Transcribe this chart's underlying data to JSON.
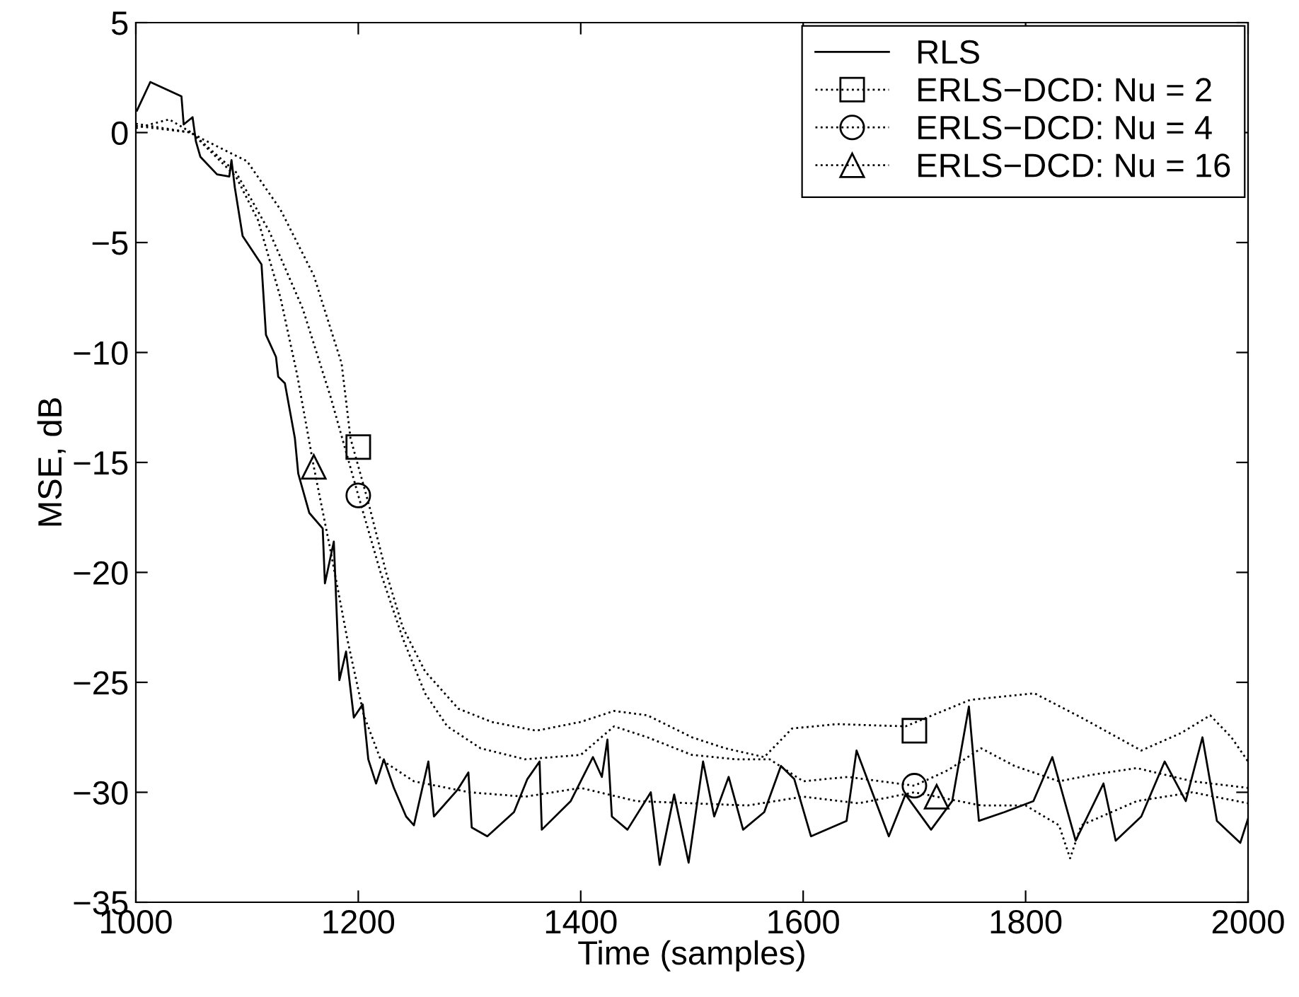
{
  "chart_data": {
    "type": "line",
    "xlabel": "Time (samples)",
    "ylabel": "MSE, dB",
    "xlim": [
      1000,
      2000
    ],
    "xticks": [
      1000,
      1200,
      1400,
      1600,
      1800,
      2000
    ],
    "ylim": [
      -35,
      5
    ],
    "yticks": [
      -35,
      -30,
      -25,
      -20,
      -15,
      -10,
      -5,
      0,
      5
    ],
    "grid": false,
    "legend": "top right",
    "series": [
      {
        "name": "RLS",
        "color": "#000000",
        "line_style": "solid",
        "x": [
          1001,
          1013,
          1041,
          1043,
          1051,
          1054,
          1058,
          1073,
          1084,
          1086,
          1089,
          1096,
          1113,
          1117,
          1126,
          1128,
          1134,
          1143,
          1146,
          1156,
          1168,
          1170,
          1178,
          1183,
          1189,
          1196,
          1204,
          1209,
          1216,
          1223,
          1232,
          1243,
          1250,
          1263,
          1268,
          1289,
          1299,
          1302,
          1316,
          1340,
          1352,
          1363,
          1365,
          1391,
          1411,
          1419,
          1424,
          1428,
          1442,
          1463,
          1471,
          1484,
          1497,
          1510,
          1520,
          1533,
          1546,
          1565,
          1580,
          1592,
          1607,
          1639,
          1648,
          1677,
          1692,
          1715,
          1734,
          1749,
          1758,
          1781,
          1807,
          1824,
          1845,
          1870,
          1881,
          1904,
          1925,
          1944,
          1959,
          1972,
          1993,
          2000
        ],
        "values": [
          1.0,
          2.3,
          1.65,
          0.37,
          0.7,
          -0.4,
          -1.1,
          -1.9,
          -2.0,
          -1.25,
          -2.5,
          -4.7,
          -6.0,
          -9.2,
          -10.2,
          -11.1,
          -11.4,
          -13.9,
          -15.5,
          -17.3,
          -18.0,
          -20.5,
          -18.6,
          -24.9,
          -23.6,
          -26.6,
          -26.0,
          -28.5,
          -29.6,
          -28.5,
          -29.8,
          -31.1,
          -31.5,
          -28.6,
          -31.1,
          -29.9,
          -29.1,
          -31.6,
          -32.0,
          -30.9,
          -29.4,
          -28.6,
          -31.7,
          -30.4,
          -28.4,
          -29.3,
          -27.6,
          -31.1,
          -31.7,
          -30.0,
          -33.3,
          -30.1,
          -33.2,
          -28.6,
          -31.1,
          -29.3,
          -31.7,
          -30.9,
          -28.8,
          -29.4,
          -32.0,
          -31.3,
          -28.1,
          -32.0,
          -30.1,
          -31.7,
          -30.4,
          -26.1,
          -31.3,
          -30.9,
          -30.4,
          -28.4,
          -32.2,
          -29.6,
          -32.2,
          -31.1,
          -28.6,
          -30.4,
          -27.5,
          -31.3,
          -32.3,
          -31.2
        ]
      },
      {
        "name": "ERLS−DCD: Nu = 2",
        "color": "#000000",
        "line_style": "dotted",
        "x": [
          1000,
          1030,
          1060,
          1100,
          1130,
          1160,
          1185,
          1193,
          1210,
          1225,
          1240,
          1260,
          1290,
          1320,
          1360,
          1400,
          1430,
          1460,
          1500,
          1530,
          1565,
          1590,
          1630,
          1692,
          1750,
          1808,
          1850,
          1904,
          1940,
          1966,
          1985,
          2000
        ],
        "values": [
          0.2,
          0.6,
          -0.3,
          -1.3,
          -3.5,
          -6.5,
          -10.5,
          -13.9,
          -17,
          -20,
          -22.5,
          -24.5,
          -26.2,
          -26.8,
          -27.2,
          -26.8,
          -26.3,
          -26.5,
          -27.5,
          -28,
          -28.4,
          -27.1,
          -26.9,
          -27.0,
          -25.8,
          -25.5,
          -26.6,
          -28.1,
          -27.3,
          -26.5,
          -27.5,
          -28.6
        ]
      },
      {
        "color": "#000000",
        "type": "scatter",
        "marker": "square",
        "x": [
          1200,
          1700
        ],
        "values": [
          -14.3,
          -27.2
        ]
      },
      {
        "name": "ERLS−DCD: Nu = 4",
        "color": "#000000",
        "line_style": "dotted",
        "x": [
          1000,
          1050,
          1090,
          1120,
          1150,
          1175,
          1200,
          1220,
          1240,
          1260,
          1280,
          1310,
          1350,
          1400,
          1430,
          1460,
          1500,
          1540,
          1570,
          1600,
          1640,
          1670,
          1700,
          1730,
          1760,
          1790,
          1830,
          1860,
          1900,
          1950,
          2000
        ],
        "values": [
          0.3,
          0.0,
          -1.8,
          -4.5,
          -8,
          -12,
          -16.5,
          -20,
          -23,
          -25.5,
          -27,
          -28,
          -28.5,
          -28.3,
          -27,
          -27.5,
          -28.3,
          -28.5,
          -28.5,
          -29.5,
          -29.3,
          -29.5,
          -29.7,
          -29.0,
          -28,
          -28.8,
          -29.5,
          -29.2,
          -28.9,
          -29.5,
          -29.8
        ]
      },
      {
        "color": "#000000",
        "type": "scatter",
        "marker": "circle",
        "x": [
          1200,
          1700
        ],
        "values": [
          -16.5,
          -29.7
        ]
      },
      {
        "name": "ERLS−DCD: Nu = 16",
        "color": "#000000",
        "line_style": "dotted",
        "x": [
          1000,
          1050,
          1090,
          1110,
          1130,
          1145,
          1160,
          1175,
          1190,
          1205,
          1220,
          1250,
          1300,
          1350,
          1400,
          1450,
          1500,
          1550,
          1600,
          1650,
          1700,
          1720,
          1760,
          1800,
          1830,
          1840,
          1850,
          1900,
          1950,
          2000
        ],
        "values": [
          0.4,
          0.0,
          -2.0,
          -4,
          -7.5,
          -11,
          -15.2,
          -19,
          -23,
          -26.5,
          -28.5,
          -29.5,
          -30,
          -30.2,
          -29.8,
          -30.4,
          -30.5,
          -30.6,
          -30.2,
          -30.5,
          -30.0,
          -30.2,
          -30.6,
          -30.6,
          -31.5,
          -33,
          -31.5,
          -30.4,
          -30,
          -30.5
        ]
      },
      {
        "color": "#000000",
        "type": "scatter",
        "marker": "triangle",
        "x": [
          1160,
          1720
        ],
        "values": [
          -15.2,
          -30.2
        ]
      }
    ]
  }
}
